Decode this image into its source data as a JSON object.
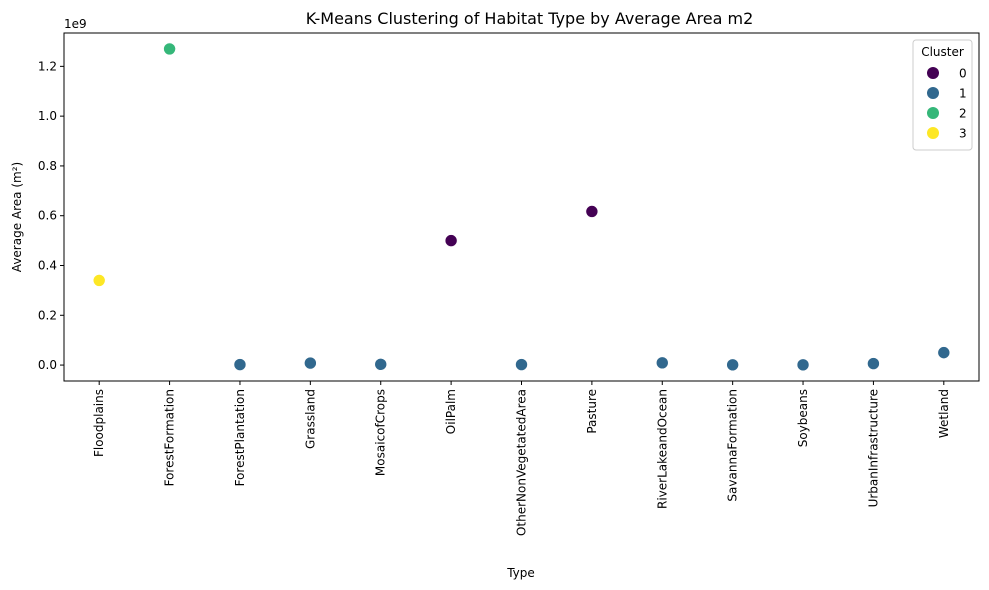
{
  "chart_data": {
    "type": "scatter",
    "title": "K-Means Clustering of Habitat Type by Average Area m2",
    "xlabel": "Type",
    "ylabel": "Average Area (m²)",
    "y_offset_label": "1e9",
    "categories": [
      "Floodplains",
      "ForestFormation",
      "ForestPlantation",
      "Grassland",
      "MosaicofCrops",
      "OilPalm",
      "OtherNonVegetatedArea",
      "Pasture",
      "RiverLakeandOcean",
      "SavannaFormation",
      "Soybeans",
      "UrbanInfrastructure",
      "Wetland"
    ],
    "values": [
      340000000,
      1270000000,
      2000000,
      8000000,
      3000000,
      500000000,
      2000000,
      617000000,
      9000000,
      1000000,
      1000000,
      6000000,
      50000000
    ],
    "clusters": [
      3,
      2,
      1,
      1,
      1,
      0,
      1,
      0,
      1,
      1,
      1,
      1,
      1
    ],
    "y_ticks": [
      0.0,
      0.2,
      0.4,
      0.6,
      0.8,
      1.0,
      1.2
    ],
    "y_tick_labels": [
      "0.0",
      "0.2",
      "0.4",
      "0.6",
      "0.8",
      "1.0",
      "1.2"
    ],
    "ylim": [
      -0.064,
      1.334
    ],
    "legend": {
      "title": "Cluster",
      "position": "top-right",
      "entries": [
        {
          "label": "0",
          "color": "#440154"
        },
        {
          "label": "1",
          "color": "#31688e"
        },
        {
          "label": "2",
          "color": "#35b779"
        },
        {
          "label": "3",
          "color": "#fde725"
        }
      ]
    },
    "grid": false
  }
}
